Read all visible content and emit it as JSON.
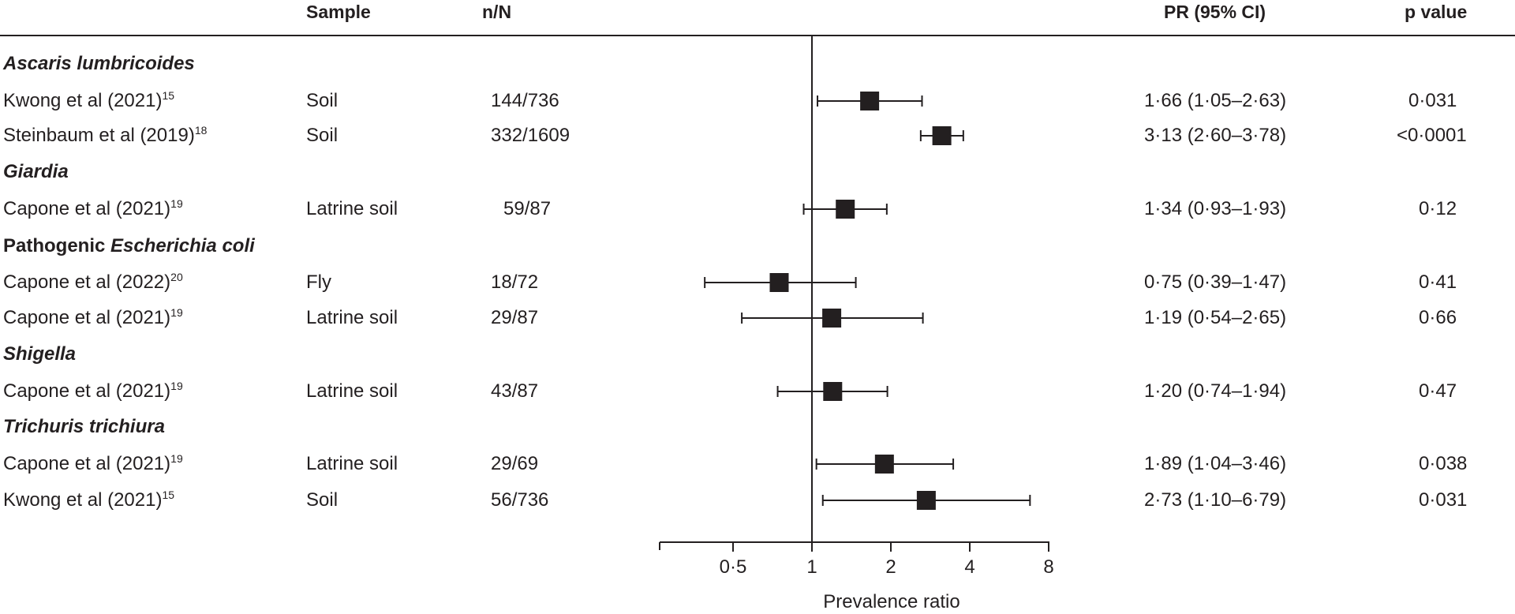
{
  "headers": {
    "sample": "Sample",
    "nN": "n/N",
    "pr": "PR (95% CI)",
    "p": "p value"
  },
  "groups": [
    {
      "name_italic": "Ascaris lumbricoides",
      "name_plain": ""
    },
    {
      "name_italic": "Giardia",
      "name_plain": ""
    },
    {
      "name_italic": "",
      "name_plain": "Pathogenic ",
      "name_italic_suffix": "Escherichia coli"
    },
    {
      "name_italic": "Shigella",
      "name_plain": ""
    },
    {
      "name_italic": "Trichuris trichiura",
      "name_plain": ""
    }
  ],
  "rows": [
    {
      "study": "Kwong et al (2021)",
      "ref": "15",
      "sample": "Soil",
      "nN": "144/736",
      "pr_text": "1·66 (1·05–2·63)",
      "p": "0·031"
    },
    {
      "study": "Steinbaum et al (2019)",
      "ref": "18",
      "sample": "Soil",
      "nN": "332/1609",
      "pr_text": "3·13 (2·60–3·78)",
      "p": "<0·0001"
    },
    {
      "study": "Capone et al (2021)",
      "ref": "19",
      "sample": "Latrine soil",
      "nN": "59/87",
      "pr_text": "1·34 (0·93–1·93)",
      "p": "0·12"
    },
    {
      "study": "Capone et al (2022)",
      "ref": "20",
      "sample": "Fly",
      "nN": "18/72",
      "pr_text": "0·75 (0·39–1·47)",
      "p": "0·41"
    },
    {
      "study": "Capone et al (2021)",
      "ref": "19",
      "sample": "Latrine soil",
      "nN": "29/87",
      "pr_text": "1·19 (0·54–2·65)",
      "p": "0·66"
    },
    {
      "study": "Capone et al (2021)",
      "ref": "19",
      "sample": "Latrine soil",
      "nN": "43/87",
      "pr_text": "1·20 (0·74–1·94)",
      "p": "0·47"
    },
    {
      "study": "Capone et al (2021)",
      "ref": "19",
      "sample": "Latrine soil",
      "nN": "29/69",
      "pr_text": "1·89 (1·04–3·46)",
      "p": "0·038"
    },
    {
      "study": "Kwong et al (2021)",
      "ref": "15",
      "sample": "Soil",
      "nN": "56/736",
      "pr_text": "2·73 (1·10–6·79)",
      "p": "0·031"
    }
  ],
  "chart_data": {
    "type": "forest",
    "xlabel": "Prevalence ratio",
    "xscale": "log2",
    "xlim": [
      0.25,
      8
    ],
    "reference_line": 1,
    "ticks": [
      {
        "value": 0.5,
        "label": "0·5"
      },
      {
        "value": 1,
        "label": "1"
      },
      {
        "value": 2,
        "label": "2"
      },
      {
        "value": 4,
        "label": "4"
      },
      {
        "value": 8,
        "label": "8"
      }
    ],
    "series": [
      {
        "name": "Kwong et al (2021) Ascaris lumbricoides",
        "estimate": 1.66,
        "lower": 1.05,
        "upper": 2.63
      },
      {
        "name": "Steinbaum et al (2019) Ascaris lumbricoides",
        "estimate": 3.13,
        "lower": 2.6,
        "upper": 3.78
      },
      {
        "name": "Capone et al (2021) Giardia",
        "estimate": 1.34,
        "lower": 0.93,
        "upper": 1.93
      },
      {
        "name": "Capone et al (2022) Pathogenic Escherichia coli",
        "estimate": 0.75,
        "lower": 0.39,
        "upper": 1.47
      },
      {
        "name": "Capone et al (2021) Pathogenic Escherichia coli",
        "estimate": 1.19,
        "lower": 0.54,
        "upper": 2.65
      },
      {
        "name": "Capone et al (2021) Shigella",
        "estimate": 1.2,
        "lower": 0.74,
        "upper": 1.94
      },
      {
        "name": "Capone et al (2021) Trichuris trichiura",
        "estimate": 1.89,
        "lower": 1.04,
        "upper": 3.46
      },
      {
        "name": "Kwong et al (2021) Trichuris trichiura",
        "estimate": 2.73,
        "lower": 1.1,
        "upper": 6.79
      }
    ]
  }
}
